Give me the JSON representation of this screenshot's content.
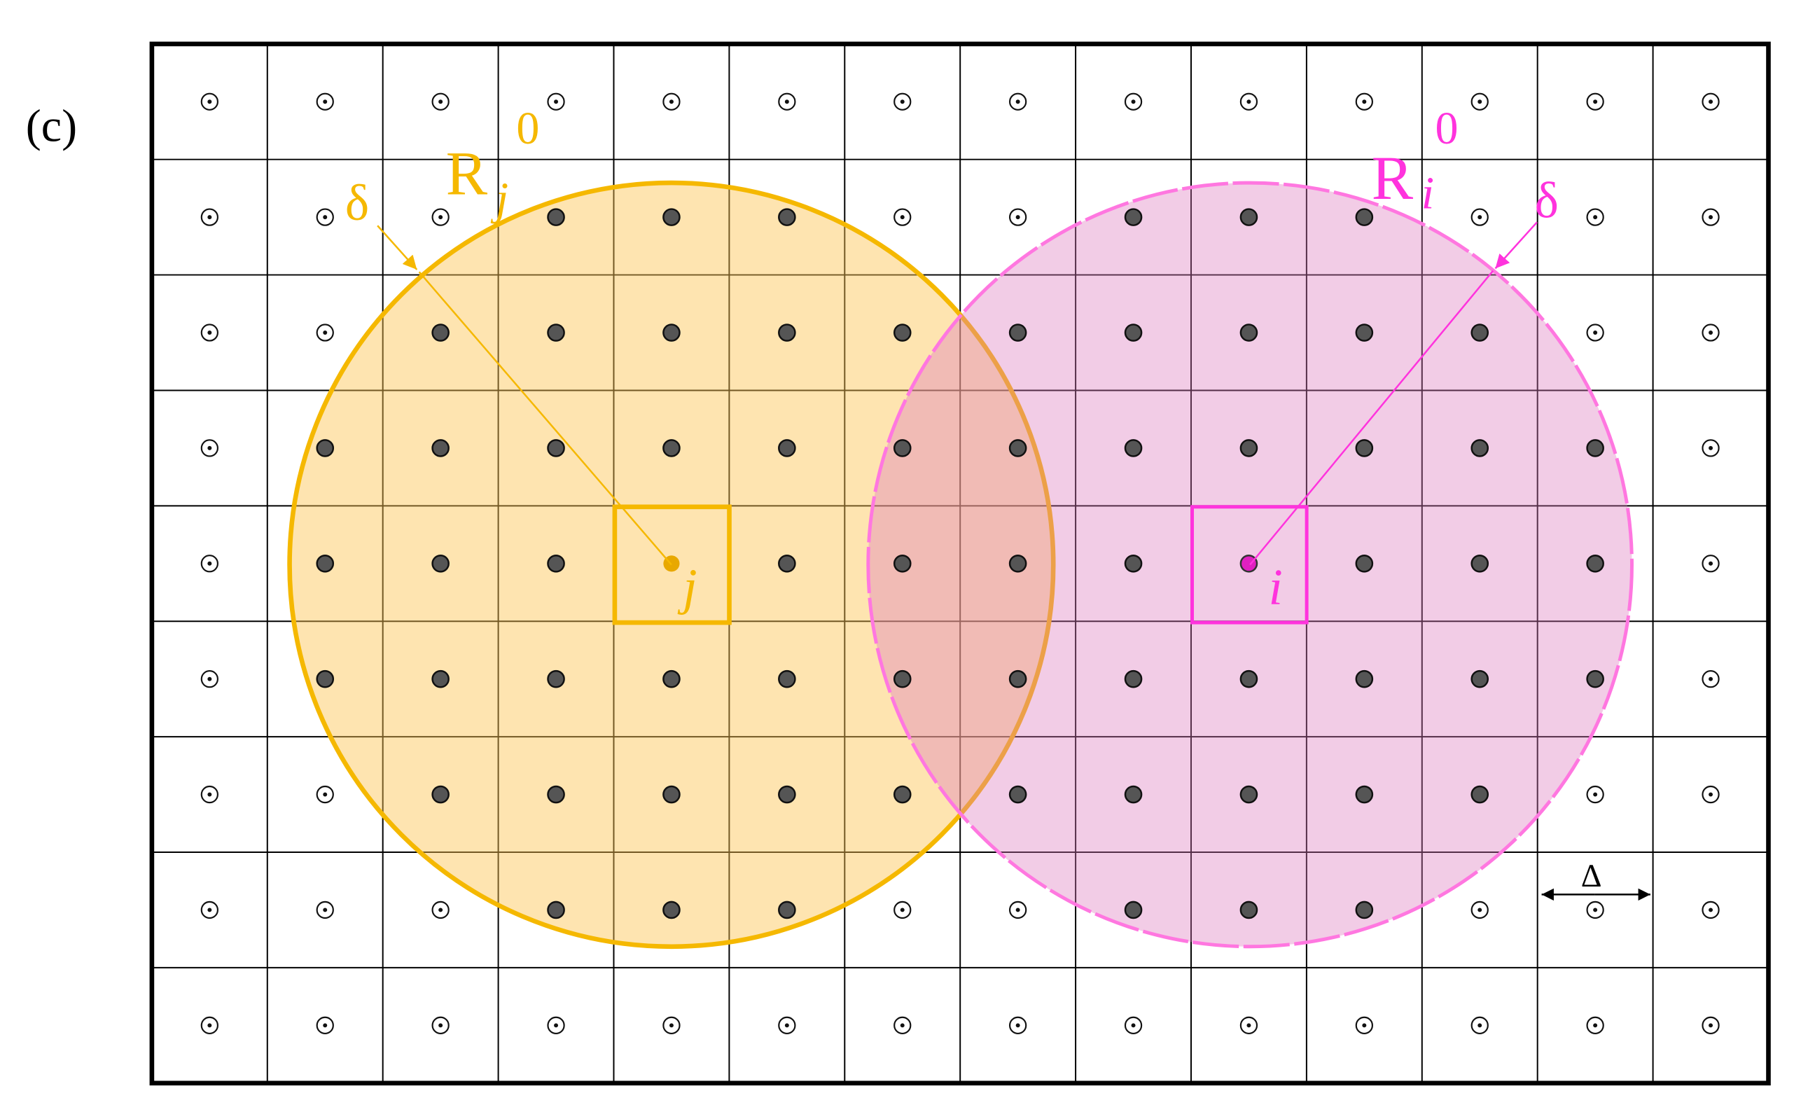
{
  "panel_label": "(c)",
  "regions": [
    {
      "symbol": "R",
      "subscript": "j",
      "superscript": "0",
      "offset_label": "δ",
      "center_label": "j"
    },
    {
      "symbol": "R",
      "subscript": "i",
      "superscript": "0",
      "offset_label": "δ",
      "center_label": "i"
    }
  ],
  "spacing_label": "Δ"
}
